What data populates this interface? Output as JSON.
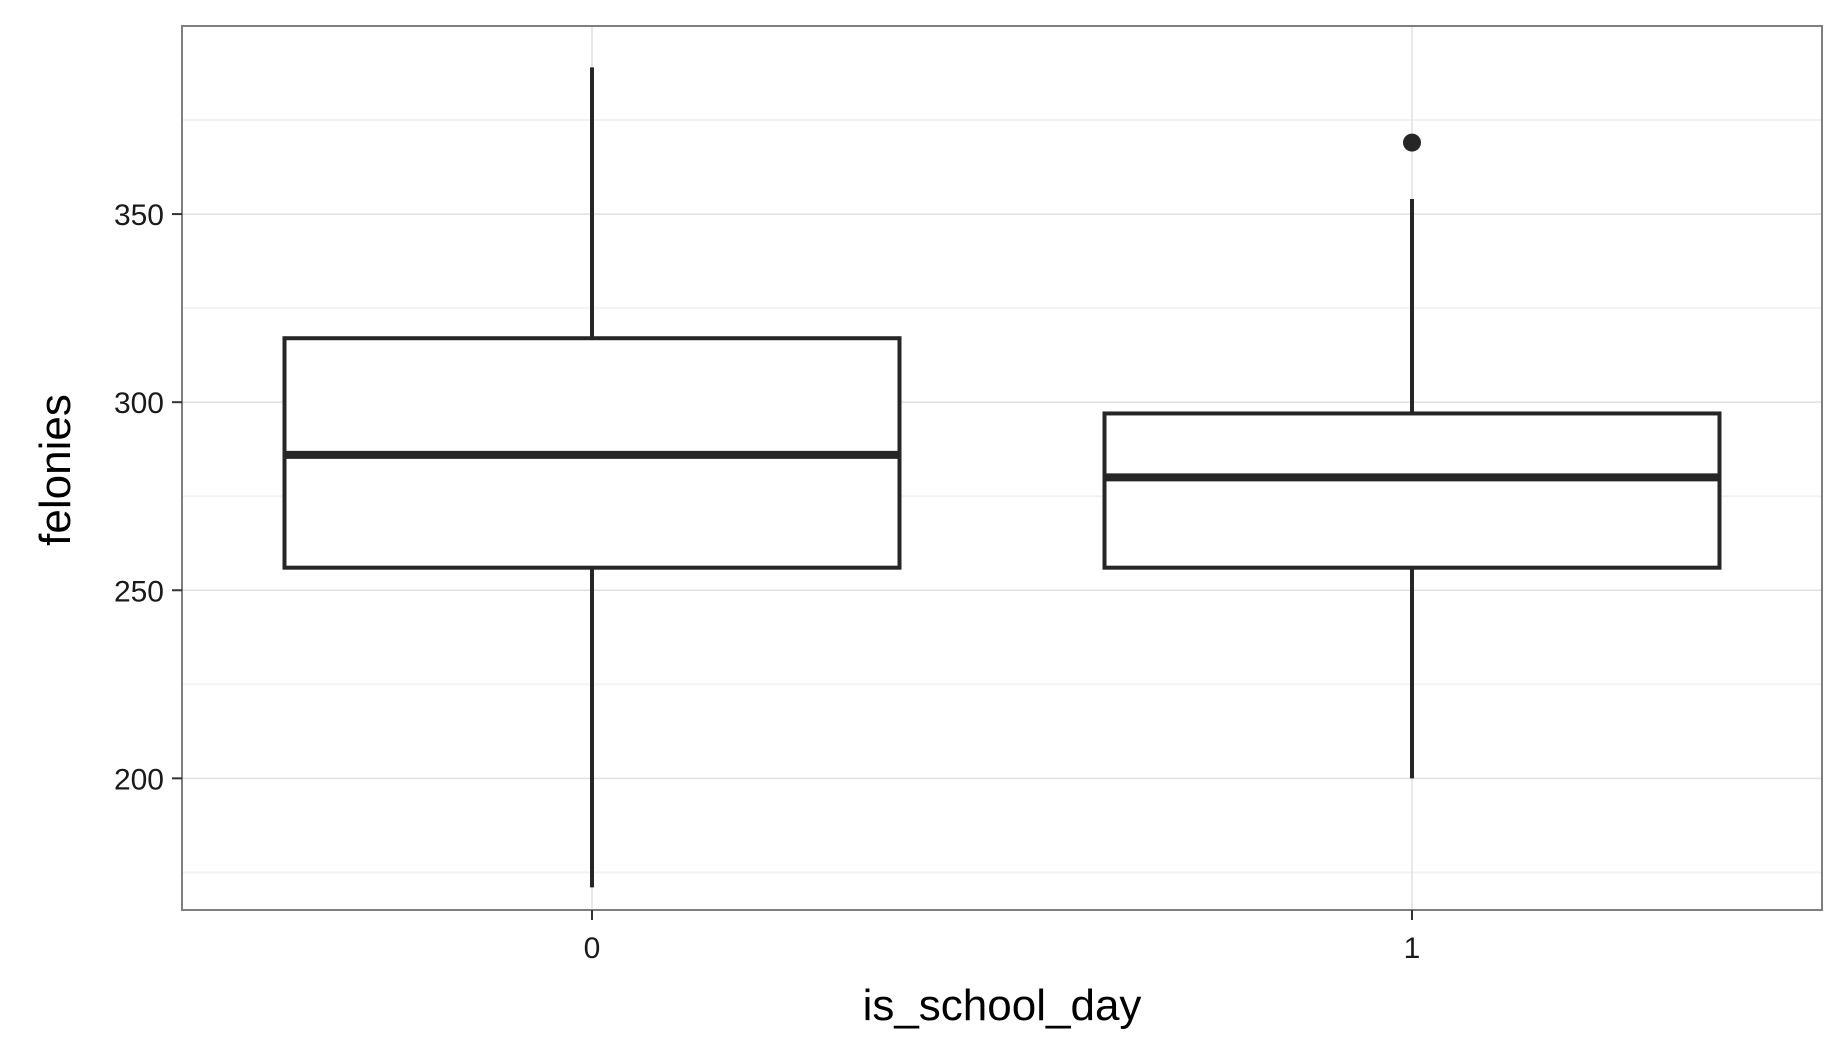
{
  "chart_data": {
    "type": "boxplot",
    "title": "",
    "xlabel": "is_school_day",
    "ylabel": "felonies",
    "categories": [
      "0",
      "1"
    ],
    "ylim": [
      165,
      400
    ],
    "y_ticks": [
      200,
      250,
      300,
      350
    ],
    "grid": true,
    "boxes": [
      {
        "category": "0",
        "whisker_low": 171,
        "q1": 256,
        "median": 286,
        "q3": 317,
        "whisker_high": 389,
        "outliers": []
      },
      {
        "category": "1",
        "whisker_low": 200,
        "q1": 256,
        "median": 280,
        "q3": 297,
        "whisker_high": 354,
        "outliers": [
          369
        ]
      }
    ],
    "colors": {
      "box_stroke": "#262626",
      "grid_major": "#e0e0e0",
      "grid_minor": "#f2f2f2",
      "panel_border": "#7f7f7f"
    }
  }
}
